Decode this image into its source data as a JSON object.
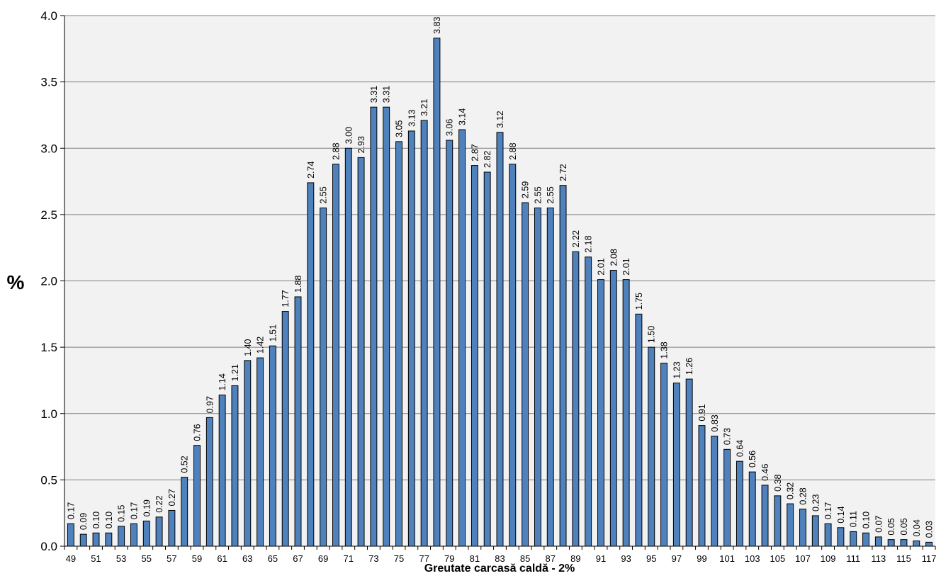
{
  "chart_data": {
    "type": "bar",
    "title": "",
    "xlabel": "Greutate carcasă caldă - 2%",
    "ylabel": "%",
    "ylim": [
      0,
      4.0
    ],
    "yticks": [
      "0.0",
      "0.5",
      "1.0",
      "1.5",
      "2.0",
      "2.5",
      "3.0",
      "3.5",
      "4.0"
    ],
    "grid": true,
    "legend": "none",
    "bar_color": "#4f81bd",
    "plot_background": "#f2f2f2",
    "categories": [
      49,
      50,
      51,
      52,
      53,
      54,
      55,
      56,
      57,
      58,
      59,
      60,
      61,
      62,
      63,
      64,
      65,
      66,
      67,
      68,
      69,
      70,
      71,
      72,
      73,
      74,
      75,
      76,
      77,
      78,
      79,
      80,
      81,
      82,
      83,
      84,
      85,
      86,
      87,
      88,
      89,
      90,
      91,
      92,
      93,
      94,
      95,
      96,
      97,
      98,
      99,
      100,
      101,
      102,
      103,
      104,
      105,
      106,
      107,
      108,
      109,
      110,
      111,
      112,
      113,
      114,
      115,
      116,
      117
    ],
    "x_tick_labels": [
      "49",
      "51",
      "53",
      "55",
      "57",
      "59",
      "61",
      "63",
      "65",
      "67",
      "69",
      "71",
      "73",
      "75",
      "77",
      "79",
      "81",
      "83",
      "85",
      "87",
      "89",
      "91",
      "93",
      "95",
      "97",
      "99",
      "101",
      "103",
      "105",
      "107",
      "109",
      "111",
      "113",
      "115",
      "117"
    ],
    "values": [
      0.17,
      0.09,
      0.1,
      0.1,
      0.15,
      0.17,
      0.19,
      0.22,
      0.27,
      0.52,
      0.76,
      0.97,
      1.14,
      1.21,
      1.4,
      1.42,
      1.51,
      1.77,
      1.88,
      2.74,
      2.55,
      2.88,
      3.0,
      2.93,
      3.31,
      3.31,
      3.05,
      3.13,
      3.21,
      3.83,
      3.06,
      3.14,
      2.87,
      2.82,
      3.12,
      2.88,
      2.59,
      2.55,
      2.55,
      2.72,
      2.22,
      2.18,
      2.01,
      2.08,
      2.01,
      1.75,
      1.5,
      1.38,
      1.23,
      1.26,
      0.91,
      0.83,
      0.73,
      0.64,
      0.56,
      0.46,
      0.38,
      0.32,
      0.28,
      0.23,
      0.17,
      0.14,
      0.11,
      0.1,
      0.07,
      0.05,
      0.05,
      0.04,
      0.03
    ],
    "data_labels": [
      "0.17",
      "0.09",
      "0.10",
      "0.10",
      "0.15",
      "0.17",
      "0.19",
      "0.22",
      "0.27",
      "0.52",
      "0.76",
      "0.97",
      "1.14",
      "1.21",
      "1.40",
      "1.42",
      "1.51",
      "1.77",
      "1.88",
      "2.74",
      "2.55",
      "2.88",
      "3.00",
      "2.93",
      "3.31",
      "3.31",
      "3.05",
      "3.13",
      "3.21",
      "3.83",
      "3.06",
      "3.14",
      "2.87",
      "2.82",
      "3.12",
      "2.88",
      "2.59",
      "2.55",
      "2.55",
      "2.72",
      "2.22",
      "2.18",
      "2.01",
      "2.08",
      "2.01",
      "1.75",
      "1.50",
      "1.38",
      "1.23",
      "1.26",
      "0.91",
      "0.83",
      "0.73",
      "0.64",
      "0.56",
      "0.46",
      "0.38",
      "0.32",
      "0.28",
      "0.23",
      "0.17",
      "0.14",
      "0.11",
      "0.10",
      "0.07",
      "0.05",
      "0.05",
      "0.04",
      "0.03"
    ]
  }
}
